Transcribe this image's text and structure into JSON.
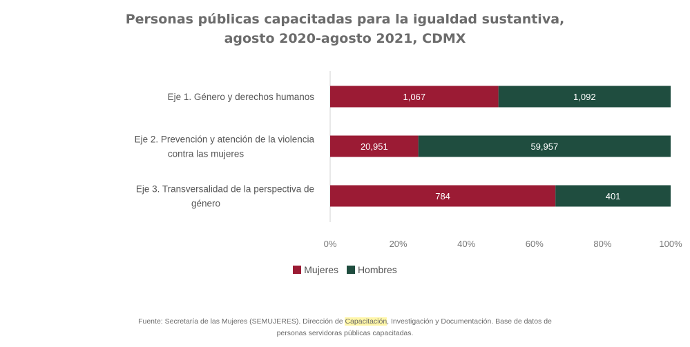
{
  "title_lines": [
    "Personas públicas capacitadas para la igualdad sustantiva,",
    "agosto 2020-agosto 2021, CDMX"
  ],
  "colors": {
    "mujeres": "#9b1b34",
    "hombres": "#1f4d3f"
  },
  "legend": {
    "mujeres": "Mujeres",
    "hombres": "Hombres"
  },
  "source": {
    "before": "Fuente: Secretaría de las Mujeres (SEMUJERES). Dirección de ",
    "highlight": "Capacitación",
    "after": ", Investigación y Documentación. Base de datos de",
    "line2": "personas servidoras públicas capacitadas."
  },
  "chart_data": {
    "type": "bar",
    "orientation": "horizontal",
    "stacked": "percent",
    "categories": [
      [
        "Eje 1. Género y derechos humanos"
      ],
      [
        "Eje 2. Prevención y atención de la violencia",
        "contra las mujeres"
      ],
      [
        "Eje 3. Transversalidad de la perspectiva de",
        "género"
      ]
    ],
    "series": [
      {
        "name": "Mujeres",
        "values": [
          1067,
          20951,
          784
        ],
        "labels": [
          "1,067",
          "20,951",
          "784"
        ]
      },
      {
        "name": "Hombres",
        "values": [
          1092,
          59957,
          401
        ],
        "labels": [
          "1,092",
          "59,957",
          "401"
        ]
      }
    ],
    "xticks": [
      "0%",
      "20%",
      "40%",
      "60%",
      "80%",
      "100%"
    ],
    "xlim": [
      0,
      100
    ],
    "grid": false,
    "legend_position": "bottom"
  }
}
